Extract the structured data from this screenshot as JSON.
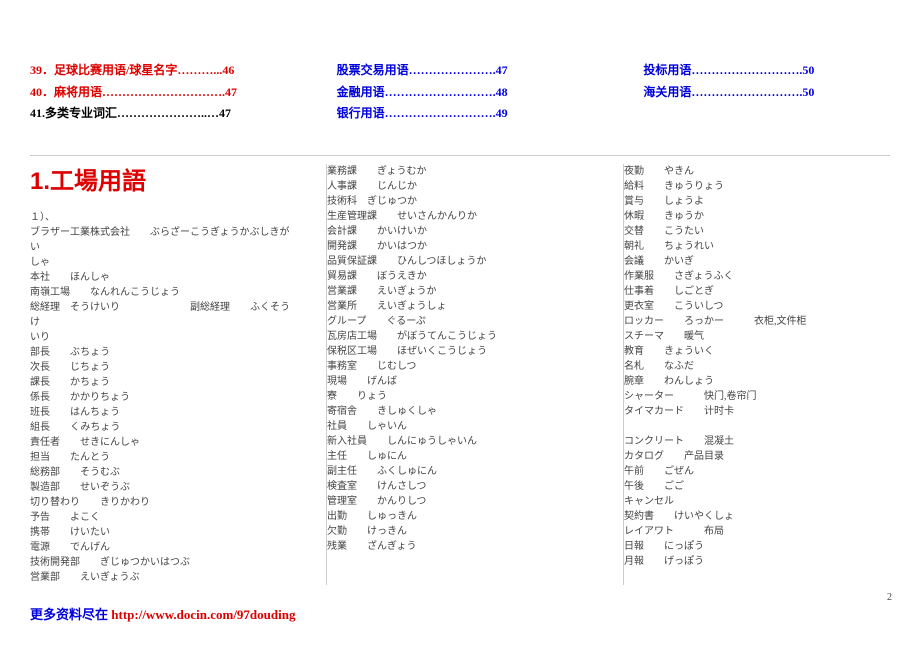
{
  "toc": {
    "col1": [
      {
        "text": "39．足球比赛用语/球星名字………...46",
        "cls": "toc-red"
      },
      {
        "text": "40．麻将用语………………………….47",
        "cls": "toc-red"
      },
      {
        "text": "41.多类专业词汇…………………..…47",
        "cls": "toc-black"
      }
    ],
    "col2": [
      {
        "text": "股票交易用语………………….47",
        "cls": "toc-blue"
      },
      {
        "text": "金融用语……………………….48",
        "cls": "toc-blue"
      },
      {
        "text": "银行用语……………………….49",
        "cls": "toc-blue"
      }
    ],
    "col3": [
      {
        "text": "投标用语……………………….50",
        "cls": "toc-blue"
      },
      {
        "text": "海关用语……………………….50",
        "cls": "toc-blue"
      }
    ]
  },
  "heading": "1.工場用語",
  "col1": [
    "１）、",
    "ブラザー工業株式会社　　ぶらざーこうぎょうかぶしきがい",
    "しゃ",
    "本社　　ほんしゃ",
    "南嶺工場　　なんれんこうじょう",
    "総経理　そうけいり　　　　　　　副総経理　　ふくそうけ",
    "いり",
    "部長　　ぶちょう",
    "次長　　じちょう",
    "課長　　かちょう",
    "係長　　かかりちょう",
    "班長　　はんちょう",
    "組長　　くみちょう",
    "責任者　　せきにんしゃ",
    "担当　　たんとう",
    "総務部　　そうむぶ",
    "製造部　　せいぞうぶ",
    "切り替わり　　きりかわり",
    "予告　　よこく",
    "携帯　　けいたい",
    "電源　　でんげん",
    "技術開発部　　ぎじゅつかいはつぶ",
    "営業部　　えいぎょうぶ"
  ],
  "col2": [
    "業務課　　ぎょうむか",
    "人事課　　じんじか",
    "技術科　ぎじゅつか",
    "生産管理課　　せいさんかんりか",
    "会計課　　かいけいか",
    "開発課　　かいはつか",
    "品質保証課　　ひんしつほしょうか",
    "貿易課　　ぼうえきか",
    "営業課　　えいぎょうか",
    "営業所　　えいぎょうしょ",
    "グループ　　ぐるーぷ",
    "瓦房店工場　　がぼうてんこうじょう",
    "保税区工場　　ほぜいくこうじょう",
    "事務室　　じむしつ",
    "現場　　げんば",
    "寮　　りょう",
    "寄宿舎　　きしゅくしゃ",
    "社員　　しゃいん",
    "新入社員　　しんにゅうしゃいん",
    "主任　　しゅにん",
    "副主任　　ふくしゅにん",
    "検査室　　けんさしつ",
    "管理室　　かんりしつ",
    "出勤　　しゅっきん",
    "欠勤　　けっきん",
    "残業　　ざんぎょう"
  ],
  "col3": [
    "夜勤　　やきん",
    "給料　　きゅうりょう",
    "賞与　　しょうよ",
    "休暇　　きゅうか",
    "交替　　こうたい",
    "朝礼　　ちょうれい",
    "会議　　かいぎ",
    "作業服　　さぎょうふく",
    "仕事着　　しごとぎ",
    "更衣室　　こういしつ",
    "ロッカー　　ろっかー　　　衣柜,文件柜",
    "スチーマ　　暖气",
    "教育　　きょういく",
    "名札　　なふだ",
    "腕章　　わんしょう",
    "シャーター　　　快门,卷帘门",
    "タイマカード　　计时卡",
    "",
    "コンクリート　　混凝土",
    "カタログ　　产品目录",
    "午前　　ごぜん",
    "午後　　ごご",
    "キャンセル",
    "契約書　　けいやくしょ",
    "レイアワト　　　布局",
    "日報　　にっぽう",
    "月報　　げっぽう"
  ],
  "footer": {
    "label": "更多资料尽在 ",
    "link": "http://www.docin.com/97douding"
  },
  "page_num": "2"
}
